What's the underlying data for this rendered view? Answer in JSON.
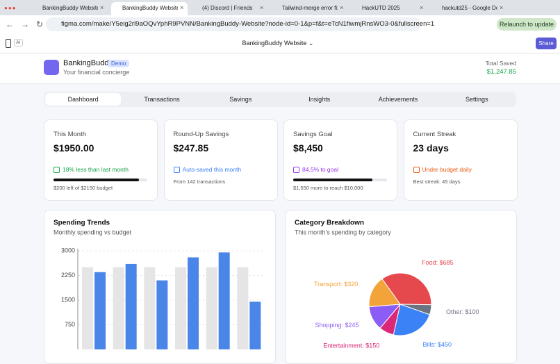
{
  "browser": {
    "tabs": [
      "BankingBuddy Website",
      "BankingBuddy Website",
      "(4) Discord | Friends",
      "Tailwind-merge error fix",
      "HackUTD 2025",
      "hackutd25 - Google Do"
    ],
    "url": "figma.com/make/Y5eig2rl9aOQvYphR9PVNN/BankingBuddy-Website?node-id=0-1&p=f&t=eTcN1fiwmjRnsWO3-0&fullscreen=1",
    "relaunch": "Relaunch to update"
  },
  "figma": {
    "ai": "AI",
    "title": "BankingBuddy Website",
    "share": "Share"
  },
  "header": {
    "brand": "BankingBuddy",
    "badge": "Demo",
    "tagline": "Your financial concierge",
    "total_label": "Total Saved",
    "total_value": "$1,247.85"
  },
  "nav": [
    "Dashboard",
    "Transactions",
    "Savings",
    "Insights",
    "Achievements",
    "Settings"
  ],
  "cards": [
    {
      "title": "This Month",
      "value": "$1950.00",
      "note": "18% less than last month",
      "note_color": "#16a34a",
      "foot": "$200 left of $2150 budget",
      "progress": 91
    },
    {
      "title": "Round-Up Savings",
      "value": "$247.85",
      "note": "Auto-saved this month",
      "note_color": "#3b82f6",
      "foot": "From 142 transactions"
    },
    {
      "title": "Savings Goal",
      "value": "$8,450",
      "note": "84.5% to goal",
      "note_color": "#9333ea",
      "foot": "$1,550 more to reach $10,000",
      "progress": 84.5
    },
    {
      "title": "Current Streak",
      "value": "23 days",
      "note": "Under budget daily",
      "note_color": "#ea580c",
      "foot": "Best streak: 45 days"
    }
  ],
  "chart_data": [
    {
      "type": "bar",
      "title": "Spending Trends",
      "subtitle": "Monthly spending vs budget",
      "categories": [
        null,
        null,
        null,
        null,
        null,
        null
      ],
      "series": [
        {
          "color": "#e5e5e5",
          "values": [
            2500,
            2500,
            2500,
            2500,
            2500,
            2500
          ]
        },
        {
          "color": "#4a86e8",
          "values": [
            2350,
            2600,
            2100,
            2800,
            2950,
            1450
          ]
        }
      ],
      "ylim": [
        0,
        3000
      ],
      "yticks": [
        750,
        1500,
        2250,
        3000
      ],
      "grid": true
    },
    {
      "type": "pie",
      "title": "Category Breakdown",
      "subtitle": "This month's spending by category",
      "categories": [
        "Food",
        "Other",
        "Bills",
        "Entertainment",
        "Shopping",
        "Transport"
      ],
      "values": [
        685,
        100,
        450,
        150,
        245,
        320
      ],
      "value_labels": [
        "Food: $685",
        "Other: $100",
        "Bills: $450",
        "Entertainment: $150",
        "Shopping: $245",
        "Transport: $320"
      ],
      "colors": [
        "#e5484d",
        "#6b7280",
        "#3b82f6",
        "#db2777",
        "#8b5cf6",
        "#f2a33a"
      ]
    }
  ]
}
